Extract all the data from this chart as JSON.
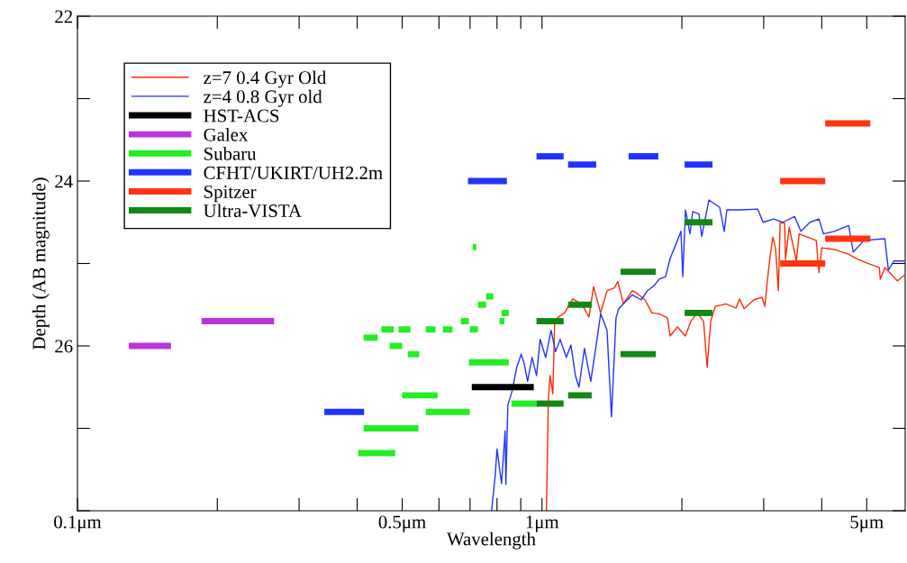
{
  "chart_data": {
    "type": "line",
    "xlabel": "Wavelength",
    "ylabel": "Depth (AB magnitude)",
    "log": "x",
    "xlim": [
      0.1,
      6.05
    ],
    "ylim": [
      28,
      22
    ],
    "xticks": [
      {
        "value": 0.1,
        "label": "0.1μm"
      },
      {
        "value": 0.2,
        "label": null
      },
      {
        "value": 0.3,
        "label": null
      },
      {
        "value": 0.4,
        "label": null
      },
      {
        "value": 0.5,
        "label": "0.5μm"
      },
      {
        "value": 0.6,
        "label": null
      },
      {
        "value": 0.7,
        "label": null
      },
      {
        "value": 0.8,
        "label": null
      },
      {
        "value": 0.9,
        "label": null
      },
      {
        "value": 1,
        "label": "1μm"
      },
      {
        "value": 2,
        "label": null
      },
      {
        "value": 3,
        "label": null
      },
      {
        "value": 4,
        "label": null
      },
      {
        "value": 5,
        "label": "5μm"
      }
    ],
    "yticks": [
      22,
      {
        "value": 23,
        "label": null
      },
      24,
      {
        "value": 25,
        "label": null
      },
      26,
      {
        "value": 27,
        "label": null
      },
      {
        "value": 28,
        "label": null
      }
    ],
    "grid": false,
    "legend": "top left",
    "series": [
      {
        "name": "z=7 0.4 Gyr Old",
        "color": "#ff2a00",
        "x": [
          1.022,
          1.032,
          1.041,
          1.055,
          1.065,
          1.079,
          1.118,
          1.164,
          1.217,
          1.262,
          1.291,
          1.337,
          1.38,
          1.43,
          1.456,
          1.496,
          1.564,
          1.599,
          1.665,
          1.725,
          1.788,
          1.862,
          1.887,
          1.956,
          2.036,
          2.091,
          2.158,
          2.227,
          2.267,
          2.308,
          2.36,
          2.489,
          2.615,
          2.662,
          2.722,
          2.86,
          2.977,
          3.017,
          3.058,
          3.099,
          3.141,
          3.184,
          3.226,
          3.255,
          3.328,
          3.343,
          3.404,
          3.528,
          3.576,
          3.893,
          3.946,
          4.0,
          4.257,
          4.573,
          4.782,
          5.09,
          5.323,
          5.347,
          5.469,
          5.821,
          6.03
        ],
        "values": [
          28.0,
          26.64,
          26.36,
          26.58,
          25.7,
          25.66,
          25.6,
          25.43,
          25.49,
          25.65,
          25.28,
          25.6,
          25.33,
          25.3,
          25.22,
          25.49,
          25.33,
          25.36,
          25.44,
          25.6,
          25.61,
          25.66,
          25.88,
          25.77,
          25.88,
          25.7,
          25.6,
          25.7,
          26.26,
          25.7,
          25.52,
          25.49,
          25.54,
          25.43,
          25.55,
          25.44,
          25.41,
          25.52,
          25.19,
          24.9,
          24.68,
          24.83,
          25.33,
          24.51,
          24.51,
          24.95,
          24.56,
          24.97,
          24.64,
          24.72,
          25.11,
          24.81,
          24.83,
          24.89,
          24.95,
          25.01,
          25.05,
          25.19,
          25.05,
          25.21,
          25.14
        ]
      },
      {
        "name": "z=4 0.8 Gyr old",
        "color": "#2233ff",
        "x": [
          0.779,
          0.793,
          0.8,
          0.818,
          0.833,
          0.836,
          0.844,
          0.863,
          0.882,
          0.902,
          0.915,
          0.931,
          0.952,
          0.973,
          0.991,
          1.018,
          1.046,
          1.069,
          1.094,
          1.128,
          1.154,
          1.18,
          1.201,
          1.234,
          1.273,
          1.308,
          1.337,
          1.38,
          1.411,
          1.443,
          1.462,
          1.564,
          1.635,
          1.687,
          1.741,
          1.788,
          1.845,
          1.887,
          1.947,
          1.991,
          2.009,
          2.036,
          2.082,
          2.11,
          2.177,
          2.207,
          2.287,
          2.413,
          2.467,
          2.5,
          2.674,
          2.912,
          2.991,
          3.155,
          3.299,
          3.497,
          3.608,
          3.773,
          3.946,
          4.035,
          4.257,
          4.573,
          4.676,
          4.934,
          5.469,
          5.567,
          5.718,
          6.03
        ],
        "values": [
          28.0,
          27.57,
          27.25,
          27.67,
          27.03,
          27.68,
          26.72,
          26.54,
          26.26,
          26.1,
          26.21,
          26.43,
          26.14,
          26.36,
          25.92,
          26.14,
          25.81,
          26.07,
          25.92,
          26.14,
          25.99,
          26.36,
          26.5,
          26.03,
          26.43,
          25.99,
          25.61,
          25.81,
          26.86,
          25.66,
          25.55,
          25.38,
          25.44,
          25.33,
          25.27,
          25.19,
          25.16,
          24.94,
          24.75,
          24.61,
          25.16,
          24.35,
          24.64,
          24.37,
          24.4,
          24.67,
          24.23,
          24.32,
          24.61,
          24.35,
          24.35,
          24.34,
          24.5,
          24.46,
          24.5,
          24.43,
          24.61,
          24.5,
          24.46,
          24.64,
          24.61,
          24.54,
          24.86,
          24.72,
          24.7,
          25.08,
          24.97,
          24.97
        ]
      },
      {
        "name": "HST-ACS",
        "color": "#000000",
        "x": [
          0.706,
          0.96
        ],
        "values": [
          26.5,
          26.5
        ]
      },
      {
        "name": "Galex",
        "color": "#bb33dd",
        "x": [
          0.129,
          0.159
        ],
        "values": [
          26.0,
          26.0
        ]
      },
      {
        "color": "#bb33dd",
        "x": [
          0.185,
          0.265
        ],
        "values": [
          25.7,
          25.7
        ]
      },
      {
        "name": "Subaru",
        "color": "#22ee22",
        "x": [
          0.413,
          0.443
        ],
        "values": [
          25.9,
          25.9
        ]
      },
      {
        "color": "#22ee22",
        "x": [
          0.451,
          0.48
        ],
        "values": [
          25.8,
          25.8
        ]
      },
      {
        "color": "#22ee22",
        "x": [
          0.491,
          0.521
        ],
        "values": [
          25.8,
          25.8
        ]
      },
      {
        "color": "#22ee22",
        "x": [
          0.47,
          0.5
        ],
        "values": [
          26.0,
          26.0
        ]
      },
      {
        "color": "#22ee22",
        "x": [
          0.514,
          0.544
        ],
        "values": [
          26.1,
          26.1
        ]
      },
      {
        "color": "#22ee22",
        "x": [
          0.562,
          0.59
        ],
        "values": [
          25.8,
          25.8
        ]
      },
      {
        "color": "#22ee22",
        "x": [
          0.612,
          0.642
        ],
        "values": [
          25.8,
          25.8
        ]
      },
      {
        "color": "#22ee22",
        "x": [
          0.669,
          0.696
        ],
        "values": [
          25.7,
          25.7
        ]
      },
      {
        "color": "#22ee22",
        "x": [
          0.699,
          0.728
        ],
        "values": [
          25.8,
          25.8
        ]
      },
      {
        "color": "#22ee22",
        "x": [
          0.728,
          0.758
        ],
        "values": [
          25.5,
          25.5
        ]
      },
      {
        "color": "#22ee22",
        "x": [
          0.758,
          0.786
        ],
        "values": [
          25.4,
          25.4
        ]
      },
      {
        "color": "#22ee22",
        "x": [
          0.818,
          0.848
        ],
        "values": [
          25.6,
          25.6
        ]
      },
      {
        "color": "#22ee22",
        "x": [
          0.81,
          0.83
        ],
        "values": [
          25.7,
          25.7
        ]
      },
      {
        "color": "#22ee22",
        "x": [
          0.709,
          0.722
        ],
        "values": [
          24.8,
          24.8
        ]
      },
      {
        "color": "#22ee22",
        "x": [
          0.696,
          0.848
        ],
        "values": [
          26.2,
          26.2
        ]
      },
      {
        "color": "#22ee22",
        "x": [
          0.5,
          0.596
        ],
        "values": [
          26.6,
          26.6
        ]
      },
      {
        "color": "#22ee22",
        "x": [
          0.562,
          0.699
        ],
        "values": [
          26.8,
          26.8
        ]
      },
      {
        "color": "#22ee22",
        "x": [
          0.413,
          0.542
        ],
        "values": [
          27.0,
          27.0
        ]
      },
      {
        "color": "#22ee22",
        "x": [
          0.402,
          0.483
        ],
        "values": [
          27.3,
          27.3
        ]
      },
      {
        "color": "#22ee22",
        "x": [
          0.859,
          0.973
        ],
        "values": [
          26.7,
          26.7
        ]
      },
      {
        "name": "CFHT/UKIRT/UH2.2m",
        "color": "#2233ff",
        "x": [
          0.34,
          0.414
        ],
        "values": [
          26.8,
          26.8
        ]
      },
      {
        "color": "#2233ff",
        "x": [
          0.693,
          0.84
        ],
        "values": [
          24.0,
          24.0
        ]
      },
      {
        "color": "#2233ff",
        "x": [
          0.973,
          1.113
        ],
        "values": [
          23.7,
          23.7
        ]
      },
      {
        "color": "#2233ff",
        "x": [
          1.138,
          1.308
        ],
        "values": [
          23.8,
          23.8
        ]
      },
      {
        "color": "#2233ff",
        "x": [
          1.536,
          1.78
        ],
        "values": [
          23.7,
          23.7
        ]
      },
      {
        "color": "#2233ff",
        "x": [
          2.027,
          2.328
        ],
        "values": [
          23.8,
          23.8
        ]
      },
      {
        "name": "Spitzer",
        "color": "#ff3311",
        "x": [
          3.255,
          4.07
        ],
        "values": [
          24.0,
          24.0
        ]
      },
      {
        "color": "#ff3311",
        "x": [
          3.255,
          4.07
        ],
        "values": [
          25.0,
          25.0
        ]
      },
      {
        "color": "#ff3311",
        "x": [
          4.07,
          5.09
        ],
        "values": [
          24.7,
          24.7
        ]
      },
      {
        "color": "#ff3311",
        "x": [
          4.07,
          5.09
        ],
        "values": [
          23.3,
          23.3
        ]
      },
      {
        "name": "Ultra-VISTA",
        "color": "#118811",
        "x": [
          0.973,
          1.113
        ],
        "values": [
          25.7,
          25.7
        ]
      },
      {
        "color": "#118811",
        "x": [
          0.973,
          1.113
        ],
        "values": [
          26.7,
          26.7
        ]
      },
      {
        "color": "#118811",
        "x": [
          1.138,
          1.279
        ],
        "values": [
          25.5,
          25.5
        ]
      },
      {
        "color": "#118811",
        "x": [
          1.138,
          1.279
        ],
        "values": [
          26.6,
          26.6
        ]
      },
      {
        "color": "#118811",
        "x": [
          1.476,
          1.757
        ],
        "values": [
          25.1,
          25.1
        ]
      },
      {
        "color": "#118811",
        "x": [
          1.476,
          1.757
        ],
        "values": [
          26.1,
          26.1
        ]
      },
      {
        "color": "#118811",
        "x": [
          2.027,
          2.328
        ],
        "values": [
          24.5,
          24.5
        ]
      },
      {
        "color": "#118811",
        "x": [
          2.027,
          2.328
        ],
        "values": [
          25.6,
          25.6
        ]
      }
    ]
  }
}
